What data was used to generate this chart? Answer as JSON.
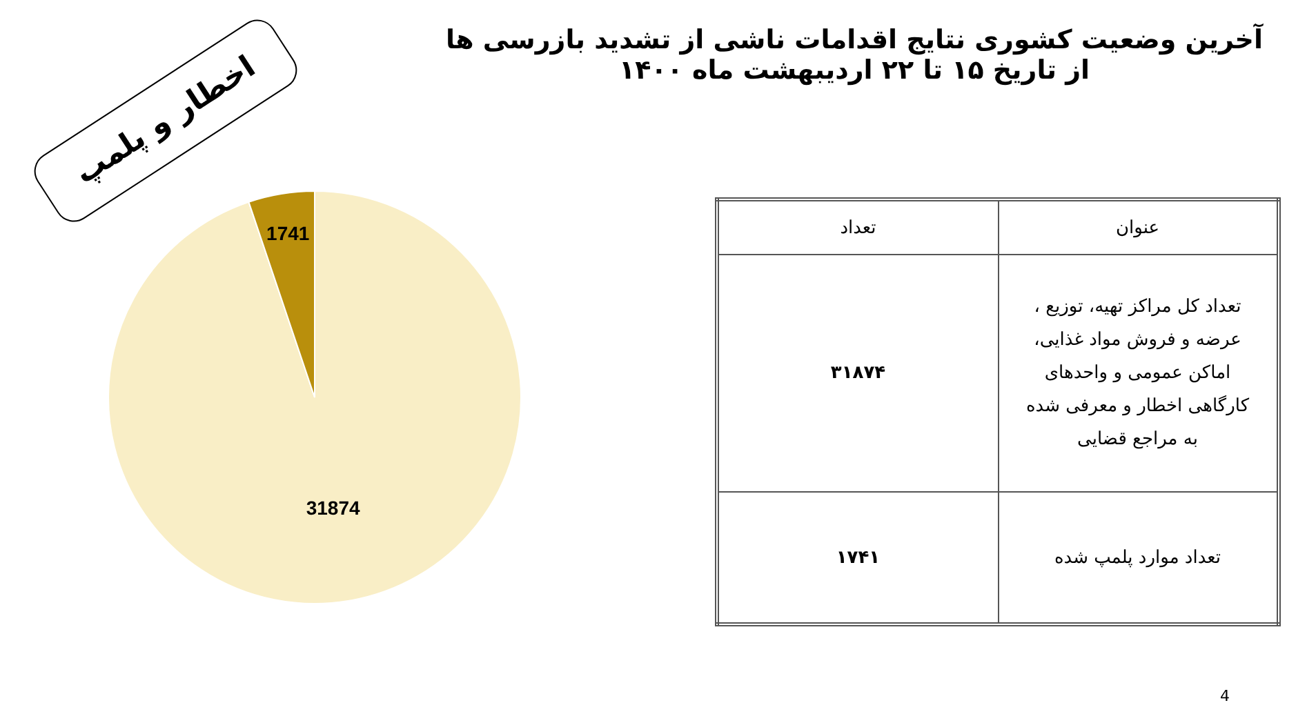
{
  "chart_data": [
    {
      "type": "pie",
      "title": "آخرین وضعیت کشوری نتایج اقدامات ناشی از تشدید بازرسی ها",
      "subtitle": "از تاریخ  ۱۵ تا ۲۲ اردیبهشت ماه ۱۴۰۰",
      "categories": [
        null,
        null
      ],
      "values": [
        31874,
        1741
      ],
      "colors": [
        "#f9eec6",
        "#b98f0c"
      ],
      "data_labels": true,
      "annotations": [
        "اخطار و پلمپ",
        "4"
      ]
    },
    {
      "type": "other",
      "annotations": [
        "عنوان",
        "تعداد",
        "تعداد کل مراکز تهیه، توزیع ، عرضه و فروش مواد غذایی، اماکن عمومی و واحدهای کارگاهی اخطار و معرفی شده به مراجع قضایی",
        "۳۱۸۷۴",
        "تعداد موارد پلمپ شده",
        "۱۷۴۱"
      ]
    }
  ]
}
